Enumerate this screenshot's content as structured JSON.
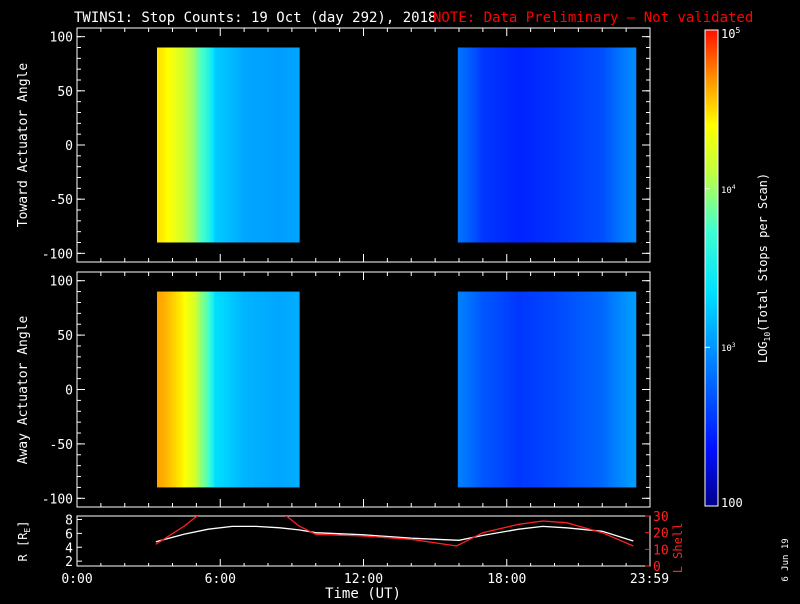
{
  "header": {
    "title": "TWINS1: Stop Counts: 19 Oct (day 292), 2018",
    "note": "NOTE: Data Preliminary – Not validated"
  },
  "colors": {
    "background": "#000000",
    "axes": "#ffffff",
    "note": "#ff0000",
    "l_shell_line": "#ff2020",
    "r_line": "#ffffff"
  },
  "panels": {
    "toward": {
      "ylabel": "Toward Actuator Angle"
    },
    "away": {
      "ylabel": "Away Actuator Angle"
    },
    "orbit": {
      "ylabel_left": "R [R",
      "ylabel_left_sub": "E",
      "ylabel_left_end": "]",
      "ylabel_right": "L Shell"
    }
  },
  "xaxis": {
    "label": "Time (UT)",
    "ticks": [
      "0:00",
      "6:00",
      "12:00",
      "18:00",
      "23:59"
    ]
  },
  "colorbar": {
    "label_pre": "LOG",
    "label_sub": "10",
    "label_post": "(Total Stops per Scan)",
    "top_base": "10",
    "top_exp": "5",
    "mid_base": "10",
    "mid_exp": "4",
    "low_base": "10",
    "low_exp": "3",
    "bottom": "100"
  },
  "footer": {
    "date_stamp": "6 Jun 19"
  },
  "chart_data": [
    {
      "type": "heatmap",
      "panel": "toward",
      "ylabel": "Toward Actuator Angle",
      "xlabel": "Time (UT)",
      "x_unit": "hours UT",
      "xlim": [
        0,
        24
      ],
      "ylim": [
        -108,
        108
      ],
      "yticks": [
        100,
        50,
        0,
        -50,
        -100
      ],
      "z_scale": "log10",
      "zlim": [
        100,
        100000
      ],
      "data_segments": [
        {
          "x_start": 3.35,
          "x_end": 9.3,
          "y_range": [
            -90,
            90
          ]
        },
        {
          "x_start": 15.95,
          "x_end": 23.4,
          "y_range": [
            -90,
            90
          ]
        }
      ],
      "level_profile_x": [
        3.35,
        3.6,
        4.5,
        5.2,
        5.8,
        7.0,
        8.5,
        9.3,
        15.95,
        17.0,
        18.5,
        20.0,
        22.0,
        23.4
      ],
      "level_profile_counts": [
        30000,
        28000,
        14000,
        6000,
        1800,
        1200,
        1100,
        1200,
        700,
        350,
        280,
        330,
        450,
        900
      ]
    },
    {
      "type": "heatmap",
      "panel": "away",
      "ylabel": "Away Actuator Angle",
      "xlabel": "Time (UT)",
      "x_unit": "hours UT",
      "xlim": [
        0,
        24
      ],
      "ylim": [
        -108,
        108
      ],
      "yticks": [
        100,
        50,
        0,
        -50,
        -100
      ],
      "z_scale": "log10",
      "zlim": [
        100,
        100000
      ],
      "data_segments": [
        {
          "x_start": 3.35,
          "x_end": 9.3,
          "y_range": [
            -90,
            90
          ]
        },
        {
          "x_start": 15.95,
          "x_end": 23.4,
          "y_range": [
            -90,
            90
          ]
        }
      ],
      "level_profile_x": [
        3.35,
        3.6,
        4.5,
        5.2,
        5.8,
        7.0,
        8.5,
        9.3,
        15.95,
        17.0,
        18.5,
        20.0,
        22.0,
        23.4
      ],
      "level_profile_counts": [
        45000,
        42000,
        25000,
        9000,
        2200,
        1400,
        1200,
        1300,
        800,
        500,
        350,
        420,
        600,
        1100
      ]
    },
    {
      "type": "line",
      "panel": "orbit",
      "xlabel": "Time (UT)",
      "x_unit": "hours UT",
      "xlim": [
        0,
        24
      ],
      "series": [
        {
          "name": "R [RE]",
          "axis": "left",
          "ylim": [
            1.3,
            8.5
          ],
          "yticks": [
            2,
            4,
            6,
            8
          ],
          "x": [
            3.3,
            4.5,
            5.5,
            6.5,
            7.5,
            8.5,
            9.3,
            10.0,
            12.0,
            14.0,
            16.0,
            17.0,
            18.5,
            19.5,
            20.5,
            22.0,
            23.3
          ],
          "y": [
            4.8,
            5.9,
            6.6,
            7.0,
            7.0,
            6.8,
            6.5,
            6.1,
            5.8,
            5.3,
            5.0,
            5.7,
            6.6,
            7.0,
            6.8,
            6.3,
            4.9
          ]
        },
        {
          "name": "L Shell",
          "axis": "right",
          "ylim": [
            0,
            30
          ],
          "yticks": [
            0,
            10,
            20,
            30
          ],
          "x": [
            3.3,
            4.5,
            5.2,
            5.7,
            8.6,
            9.3,
            10.0,
            12.0,
            14.0,
            15.9,
            17.0,
            18.5,
            19.5,
            20.5,
            22.0,
            23.3
          ],
          "y": [
            13,
            24,
            32,
            32,
            32,
            24,
            19,
            18,
            16,
            12,
            20,
            25,
            27,
            26,
            20,
            12
          ]
        }
      ]
    }
  ]
}
